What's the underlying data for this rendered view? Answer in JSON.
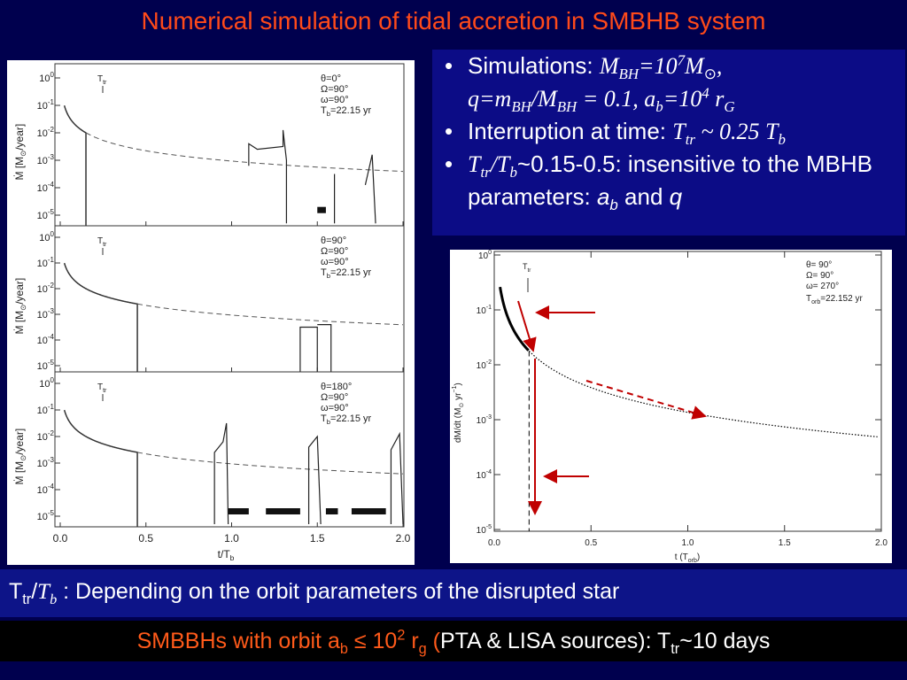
{
  "title": "Numerical simulation of tidal accretion in SMBHB system",
  "bullets": [
    [
      "Simulations: ",
      "M",
      "BH",
      "=10",
      "7",
      "M",
      "⊙",
      ",",
      "q=m",
      "BH",
      "/M",
      "BH",
      " = 0.1, a",
      "b",
      "=10",
      "4",
      " r",
      "G"
    ],
    [
      "Interruption at time: ",
      "T",
      "tr",
      " ~ 0.25 T",
      "b"
    ],
    [
      "T",
      "tr",
      "/T",
      "b",
      "~0.15-0.5: insensitive to the MBHB parameters: ",
      "a",
      "b",
      " and ",
      "q"
    ]
  ],
  "footnote": [
    "T",
    "tr",
    "/",
    "T",
    "b",
    " : Depending on the orbit parameters of the disrupted star"
  ],
  "conclusion": [
    "SMBBHs with orbit a",
    "b",
    " ≤ 10",
    "2",
    " r",
    "g",
    " (",
    "PTA & LISA sources): T",
    "tr",
    "~10 days"
  ],
  "left_figure": {
    "panels": [
      {
        "t_tr": [
          "T",
          "tr"
        ],
        "params": [
          "θ=0°",
          "Ω=90°",
          "ω=90°"
        ],
        "period": [
          "T",
          "b",
          "=22.15 yr"
        ]
      },
      {
        "t_tr": [
          "T",
          "tr"
        ],
        "params": [
          "θ=90°",
          "Ω=90°",
          "ω=90°"
        ],
        "period": [
          "T",
          "b",
          "=22.15 yr"
        ]
      },
      {
        "t_tr": [
          "T",
          "tr"
        ],
        "params": [
          "θ=180°",
          "Ω=90°",
          "ω=90°"
        ],
        "period": [
          "T",
          "b",
          "=22.15 yr"
        ]
      }
    ],
    "tick_base": "10",
    "yticks": [
      "0",
      "-1",
      "-2",
      "-3",
      "-4",
      "-5"
    ],
    "ylabel": [
      "Ṁ [M",
      "⊙",
      "/year]"
    ],
    "xticks": [
      "0.0",
      "0.5",
      "1.0",
      "1.5",
      "2.0"
    ],
    "xlabel": [
      "t/T",
      "b"
    ]
  },
  "right_figure": {
    "tick_base": "10",
    "yticks": [
      "0",
      "-1",
      "-2",
      "-3",
      "-4",
      "-5"
    ],
    "ylabel": [
      "dM/dt (M",
      "⊙",
      " yr",
      "−1",
      ")"
    ],
    "xticks": [
      "0.0",
      "0.5",
      "1.0",
      "1.5",
      "2.0"
    ],
    "xlabel": [
      "t  (T",
      "orb",
      ")"
    ],
    "params": [
      "θ= 90°",
      "Ω= 90°",
      "ω= 270°"
    ],
    "period": [
      "T",
      "orb",
      "=22.152 yr"
    ],
    "t_tr": [
      "T",
      "tr"
    ]
  }
}
